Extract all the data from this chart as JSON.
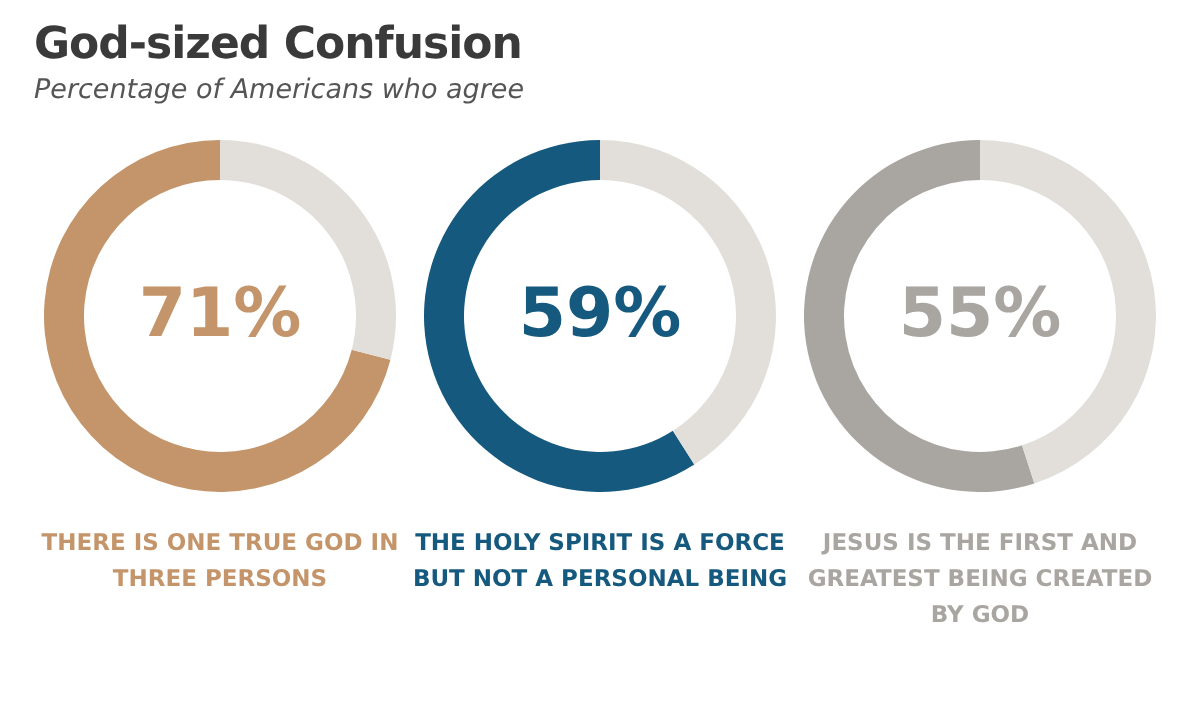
{
  "chart_data": [
    {
      "type": "donut",
      "title": "God-sized Confusion",
      "subtitle": "Percentage of Americans who agree",
      "categories": [
        "THERE IS ONE TRUE GOD IN THREE PERSONS",
        null
      ],
      "values": [
        71,
        29
      ],
      "colors": [
        "#c4956a",
        "#e2dfdb"
      ],
      "value_labels": [
        "71%",
        null
      ]
    },
    {
      "type": "donut",
      "categories": [
        "THE HOLY SPIRIT IS A FORCE BUT NOT A PERSONAL BEING",
        null
      ],
      "values": [
        59,
        41
      ],
      "colors": [
        "#155a7e",
        "#e2dfdb"
      ],
      "value_labels": [
        "59%",
        null
      ]
    },
    {
      "type": "donut",
      "categories": [
        "JESUS IS THE FIRST AND GREATEST BEING CREATED BY GOD",
        null
      ],
      "values": [
        55,
        45
      ],
      "colors": [
        "#a9a6a1",
        "#e2dfdb"
      ],
      "value_labels": [
        "55%",
        null
      ]
    }
  ]
}
